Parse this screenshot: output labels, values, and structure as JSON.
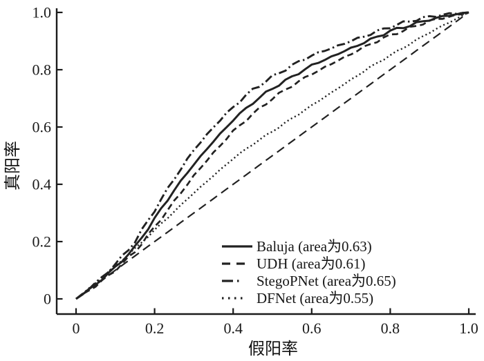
{
  "figure": {
    "background": "#ffffff",
    "ink_color": "#222222",
    "axis_color": "#1a1a1a"
  },
  "chart_data": {
    "type": "line",
    "title": "",
    "xlabel": "假阳率",
    "ylabel": "真阳率",
    "xlim": [
      0,
      1
    ],
    "ylim": [
      0,
      1
    ],
    "grid": false,
    "legend_position": "lower right",
    "x_tick_labels": [
      "0",
      "0.2",
      "0.4",
      "0.6",
      "0.8",
      "1.0"
    ],
    "y_tick_labels": [
      "0",
      "0.2",
      "0.4",
      "0.6",
      "0.8",
      "1.0"
    ],
    "x": [
      0,
      0.05,
      0.1,
      0.15,
      0.2,
      0.25,
      0.3,
      0.35,
      0.4,
      0.45,
      0.5,
      0.55,
      0.6,
      0.65,
      0.7,
      0.75,
      0.8,
      0.85,
      0.9,
      0.95,
      1
    ],
    "series": [
      {
        "key": "baluja",
        "name": "Baluja (area为0.63)",
        "auc": 0.63,
        "line_style": "solid",
        "in_legend": true,
        "values": [
          0,
          0.05,
          0.11,
          0.18,
          0.28,
          0.38,
          0.47,
          0.55,
          0.625,
          0.685,
          0.735,
          0.775,
          0.815,
          0.845,
          0.875,
          0.905,
          0.935,
          0.955,
          0.975,
          0.99,
          1
        ]
      },
      {
        "key": "udh",
        "name": "UDH (area为0.61)",
        "auc": 0.61,
        "line_style": "dashed",
        "in_legend": true,
        "values": [
          0,
          0.045,
          0.1,
          0.165,
          0.25,
          0.34,
          0.43,
          0.51,
          0.585,
          0.645,
          0.7,
          0.745,
          0.785,
          0.82,
          0.855,
          0.89,
          0.92,
          0.945,
          0.97,
          0.985,
          1
        ]
      },
      {
        "key": "stegopnet",
        "name": "StegoPNet (area为0.65)",
        "auc": 0.65,
        "line_style": "dashdot",
        "in_legend": true,
        "values": [
          0,
          0.055,
          0.12,
          0.2,
          0.31,
          0.42,
          0.52,
          0.6,
          0.67,
          0.73,
          0.775,
          0.815,
          0.85,
          0.875,
          0.9,
          0.925,
          0.95,
          0.97,
          0.985,
          0.995,
          1
        ]
      },
      {
        "key": "dfnet",
        "name": "DFNet (area为0.55)",
        "auc": 0.55,
        "line_style": "dotted",
        "in_legend": true,
        "values": [
          0,
          0.055,
          0.115,
          0.175,
          0.24,
          0.305,
          0.37,
          0.43,
          0.49,
          0.54,
          0.585,
          0.63,
          0.675,
          0.72,
          0.765,
          0.81,
          0.85,
          0.89,
          0.93,
          0.965,
          1
        ]
      },
      {
        "key": "chance-line",
        "name": "chance diagonal",
        "line_style": "longdash",
        "in_legend": false,
        "values": [
          0,
          0.05,
          0.1,
          0.15,
          0.2,
          0.25,
          0.3,
          0.35,
          0.4,
          0.45,
          0.5,
          0.55,
          0.6,
          0.65,
          0.7,
          0.75,
          0.8,
          0.85,
          0.9,
          0.95,
          1
        ]
      }
    ]
  }
}
